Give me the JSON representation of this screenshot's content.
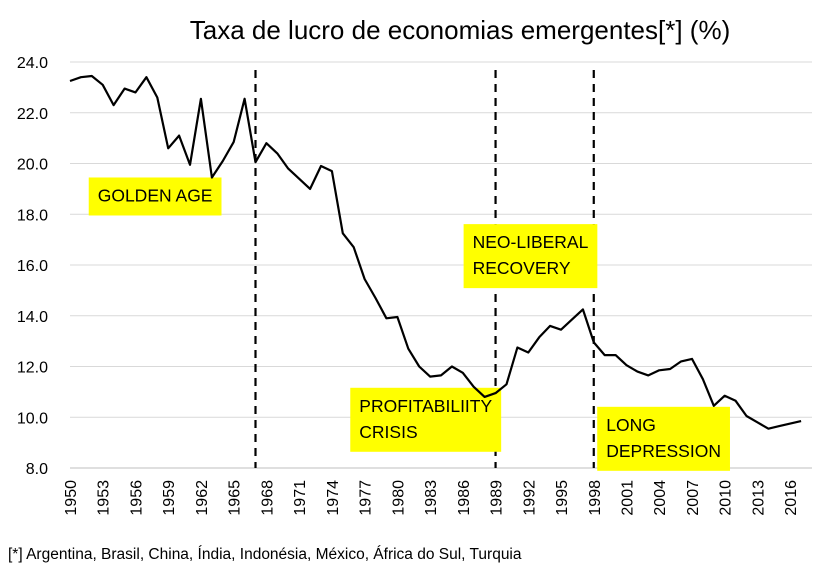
{
  "chart_data": {
    "type": "line",
    "title": "Taxa de lucro de economias emergentes[*] (%)",
    "footnote": "[*] Argentina, Brasil, China, Índia, Indonésia, México, África do Sul, Turquia",
    "xlabel": "",
    "ylabel": "",
    "ylim": [
      8,
      24
    ],
    "yticks": [
      "8.0",
      "10.0",
      "12.0",
      "14.0",
      "16.0",
      "18.0",
      "20.0",
      "22.0",
      "24.0"
    ],
    "xlim": [
      1950,
      2018
    ],
    "xticks": [
      "1950",
      "1953",
      "1956",
      "1959",
      "1962",
      "1965",
      "1968",
      "1971",
      "1974",
      "1977",
      "1980",
      "1983",
      "1986",
      "1989",
      "1992",
      "1995",
      "1998",
      "2001",
      "2004",
      "2007",
      "2010",
      "2013",
      "2016"
    ],
    "grid": "horizontal",
    "series": [
      {
        "x": [
          1950,
          1951,
          1952,
          1953,
          1954,
          1955,
          1956,
          1957,
          1958,
          1959,
          1960,
          1961,
          1962,
          1963,
          1964,
          1965,
          1966,
          1967,
          1968,
          1969,
          1970,
          1971,
          1972,
          1973,
          1974,
          1975,
          1976,
          1977,
          1978,
          1979,
          1980,
          1981,
          1982,
          1983,
          1984,
          1985,
          1986,
          1987,
          1988,
          1989,
          1990,
          1991,
          1992,
          1993,
          1994,
          1995,
          1996,
          1997,
          1998,
          1999,
          2000,
          2001,
          2002,
          2003,
          2004,
          2005,
          2006,
          2007,
          2008,
          2009,
          2010,
          2011,
          2012,
          2013,
          2014,
          2015,
          2016,
          2017
        ],
        "values": [
          23.25,
          23.4,
          23.45,
          23.1,
          22.3,
          22.95,
          22.8,
          23.4,
          22.6,
          20.6,
          21.1,
          19.95,
          22.55,
          19.45,
          20.1,
          20.85,
          22.55,
          20.05,
          20.8,
          20.4,
          19.8,
          19.4,
          19.0,
          19.9,
          19.7,
          17.25,
          16.7,
          15.45,
          14.7,
          13.9,
          13.95,
          12.7,
          12.0,
          11.6,
          11.65,
          12.0,
          11.75,
          11.2,
          10.8,
          10.95,
          11.3,
          12.75,
          12.55,
          13.15,
          13.6,
          13.45,
          13.85,
          14.25,
          12.95,
          12.45,
          12.45,
          12.05,
          11.8,
          11.65,
          11.85,
          11.9,
          12.2,
          12.3,
          11.5,
          10.45,
          10.85,
          10.65,
          10.05,
          9.8,
          9.55,
          9.65,
          9.75,
          9.85
        ]
      }
    ],
    "vertical_lines": [
      1967,
      1989,
      1998
    ],
    "annotations": [
      {
        "lines": [
          "GOLDEN AGE"
        ],
        "x": 1957.8,
        "y": 18.7
      },
      {
        "lines": [
          "PROFITABILIITY",
          "CRISIS"
        ],
        "x": 1982.6,
        "y": 9.9
      },
      {
        "lines": [
          "NEO-LIBERAL",
          "RECOVERY"
        ],
        "x": 1992.2,
        "y": 16.35
      },
      {
        "lines": [
          "LONG",
          "DEPRESSION"
        ],
        "x": 2004.4,
        "y": 9.15
      }
    ],
    "colors": {
      "line": "#000000",
      "annotation_bg": "#ffff00",
      "grid": "#d9d9d9"
    }
  }
}
